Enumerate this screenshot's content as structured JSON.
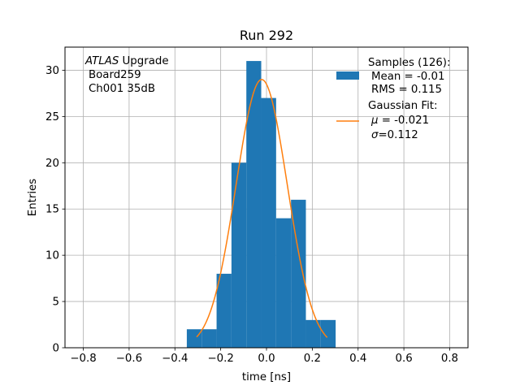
{
  "chart_data": {
    "type": "bar",
    "title": "Run 292",
    "xlabel": "time [ns]",
    "ylabel": "Entries",
    "xlim": [
      -0.88,
      0.88
    ],
    "ylim": [
      0,
      32.5
    ],
    "xticks": [
      -0.8,
      -0.6,
      -0.4,
      -0.2,
      0.0,
      0.2,
      0.4,
      0.6,
      0.8
    ],
    "xtick_labels": [
      "−0.8",
      "−0.6",
      "−0.4",
      "−0.2",
      "0.0",
      "0.2",
      "0.4",
      "0.6",
      "0.8"
    ],
    "yticks": [
      0,
      5,
      10,
      15,
      20,
      25,
      30
    ],
    "ytick_labels": [
      "0",
      "5",
      "10",
      "15",
      "20",
      "25",
      "30"
    ],
    "grid": true,
    "legend_position": "top-right",
    "bin_edges": [
      -0.348,
      -0.283,
      -0.218,
      -0.153,
      -0.088,
      -0.023,
      0.042,
      0.107,
      0.172,
      0.237,
      0.302
    ],
    "counts": [
      2,
      2,
      8,
      20,
      31,
      27,
      14,
      16,
      3,
      3
    ],
    "series": [
      {
        "name": "Samples (126):",
        "kind": "histogram",
        "color": "#1f77b4",
        "stats": [
          "Mean = -0.01",
          "RMS = 0.115"
        ]
      },
      {
        "name": "Gaussian Fit:",
        "kind": "line",
        "color": "#ff7f0e",
        "amplitude": 29.0,
        "mu": -0.021,
        "sigma": 0.112,
        "x_range": [
          -0.305,
          0.265
        ],
        "stats_italic_symbol": [
          "μ",
          "σ"
        ],
        "stats_text": [
          " = -0.021",
          "=0.112"
        ]
      }
    ],
    "annotation": {
      "italic": "ATLAS",
      "rest": " Upgrade",
      "line2": "Board259",
      "line3": "Ch001 35dB"
    }
  }
}
